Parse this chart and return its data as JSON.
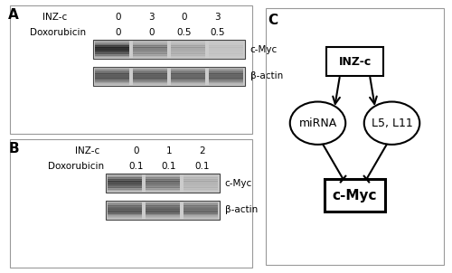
{
  "fig_width": 5.0,
  "fig_height": 3.02,
  "dpi": 100,
  "bg_color": "#ffffff",
  "panel_A": {
    "label": "A",
    "inzc_label": "INZ-c",
    "inzc_values": [
      "0",
      "3",
      "0",
      "3"
    ],
    "dox_label": "Doxorubicin",
    "dox_values": [
      "0",
      "0",
      "0.5",
      "0.5"
    ],
    "band1_label": "c-Myc",
    "band2_label": "β-actin",
    "cmyc_intensities": [
      0.97,
      0.62,
      0.38,
      0.15
    ],
    "actin_intensities": [
      0.8,
      0.78,
      0.75,
      0.76
    ]
  },
  "panel_B": {
    "label": "B",
    "inzc_label": "INZ-c",
    "inzc_values": [
      "0",
      "1",
      "2"
    ],
    "dox_label": "Doxorubicin",
    "dox_values": [
      "0.1",
      "0.1",
      "0.1"
    ],
    "band1_label": "c-Myc",
    "band2_label": "β-actin",
    "cmyc_intensities": [
      0.85,
      0.7,
      0.3
    ],
    "actin_intensities": [
      0.8,
      0.78,
      0.72
    ]
  },
  "panel_C": {
    "label": "C",
    "inzc_text": "INZ-c",
    "mirna_text": "miRNA",
    "l5_text": "L5, L11",
    "cmyc_text": "c-Myc"
  }
}
